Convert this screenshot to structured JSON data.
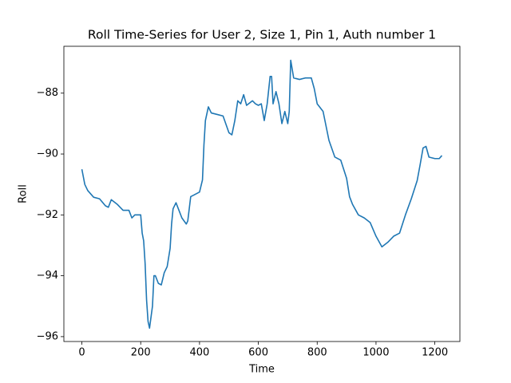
{
  "chart_data": {
    "type": "line",
    "title": "Roll Time-Series for User 2, Size 1, Pin 1, Auth number 1",
    "x_label": "Time",
    "y_label": "Roll",
    "color": "#1f77b4",
    "x": [
      0,
      10,
      20,
      40,
      60,
      80,
      90,
      100,
      120,
      140,
      160,
      170,
      180,
      200,
      205,
      210,
      215,
      220,
      225,
      230,
      240,
      245,
      250,
      260,
      270,
      280,
      290,
      300,
      305,
      310,
      320,
      330,
      340,
      355,
      360,
      370,
      380,
      400,
      410,
      415,
      420,
      430,
      440,
      460,
      480,
      500,
      510,
      520,
      530,
      540,
      550,
      560,
      580,
      590,
      600,
      610,
      620,
      630,
      640,
      645,
      650,
      660,
      670,
      680,
      690,
      700,
      705,
      710,
      720,
      740,
      760,
      780,
      790,
      800,
      820,
      840,
      860,
      880,
      900,
      910,
      920,
      940,
      960,
      980,
      1000,
      1020,
      1040,
      1060,
      1080,
      1100,
      1120,
      1140,
      1150,
      1160,
      1170,
      1180,
      1200,
      1215,
      1224
    ],
    "values": [
      -90.5,
      -91.0,
      -91.2,
      -91.42,
      -91.47,
      -91.7,
      -91.75,
      -91.5,
      -91.65,
      -91.85,
      -91.85,
      -92.1,
      -92.0,
      -92.0,
      -92.6,
      -92.85,
      -93.6,
      -94.8,
      -95.5,
      -95.72,
      -95.0,
      -94.0,
      -94.0,
      -94.25,
      -94.3,
      -93.9,
      -93.7,
      -93.1,
      -92.3,
      -91.8,
      -91.6,
      -91.85,
      -92.1,
      -92.3,
      -92.2,
      -91.4,
      -91.35,
      -91.25,
      -90.85,
      -89.7,
      -88.9,
      -88.45,
      -88.65,
      -88.7,
      -88.75,
      -89.3,
      -89.37,
      -88.9,
      -88.25,
      -88.35,
      -88.05,
      -88.4,
      -88.25,
      -88.35,
      -88.4,
      -88.35,
      -88.9,
      -88.35,
      -87.45,
      -87.45,
      -88.35,
      -87.95,
      -88.35,
      -89.0,
      -88.6,
      -89.0,
      -88.6,
      -86.92,
      -87.5,
      -87.55,
      -87.5,
      -87.5,
      -87.85,
      -88.35,
      -88.6,
      -89.55,
      -90.1,
      -90.2,
      -90.8,
      -91.4,
      -91.65,
      -92.0,
      -92.1,
      -92.25,
      -92.7,
      -93.05,
      -92.9,
      -92.7,
      -92.6,
      -92.0,
      -91.47,
      -90.87,
      -90.35,
      -89.8,
      -89.75,
      -90.1,
      -90.15,
      -90.15,
      -90.05
    ],
    "xlim": [
      -61.2,
      1285.2
    ],
    "xticks": [
      0,
      200,
      400,
      600,
      800,
      1000,
      1200
    ],
    "ylim": [
      -96.16,
      -86.46
    ],
    "yticks": [
      {
        "value": -96,
        "label": "−96"
      },
      {
        "value": -94,
        "label": "−94"
      },
      {
        "value": -92,
        "label": "−92"
      },
      {
        "value": -90,
        "label": "−90"
      },
      {
        "value": -88,
        "label": "−88"
      }
    ],
    "grid": false
  }
}
